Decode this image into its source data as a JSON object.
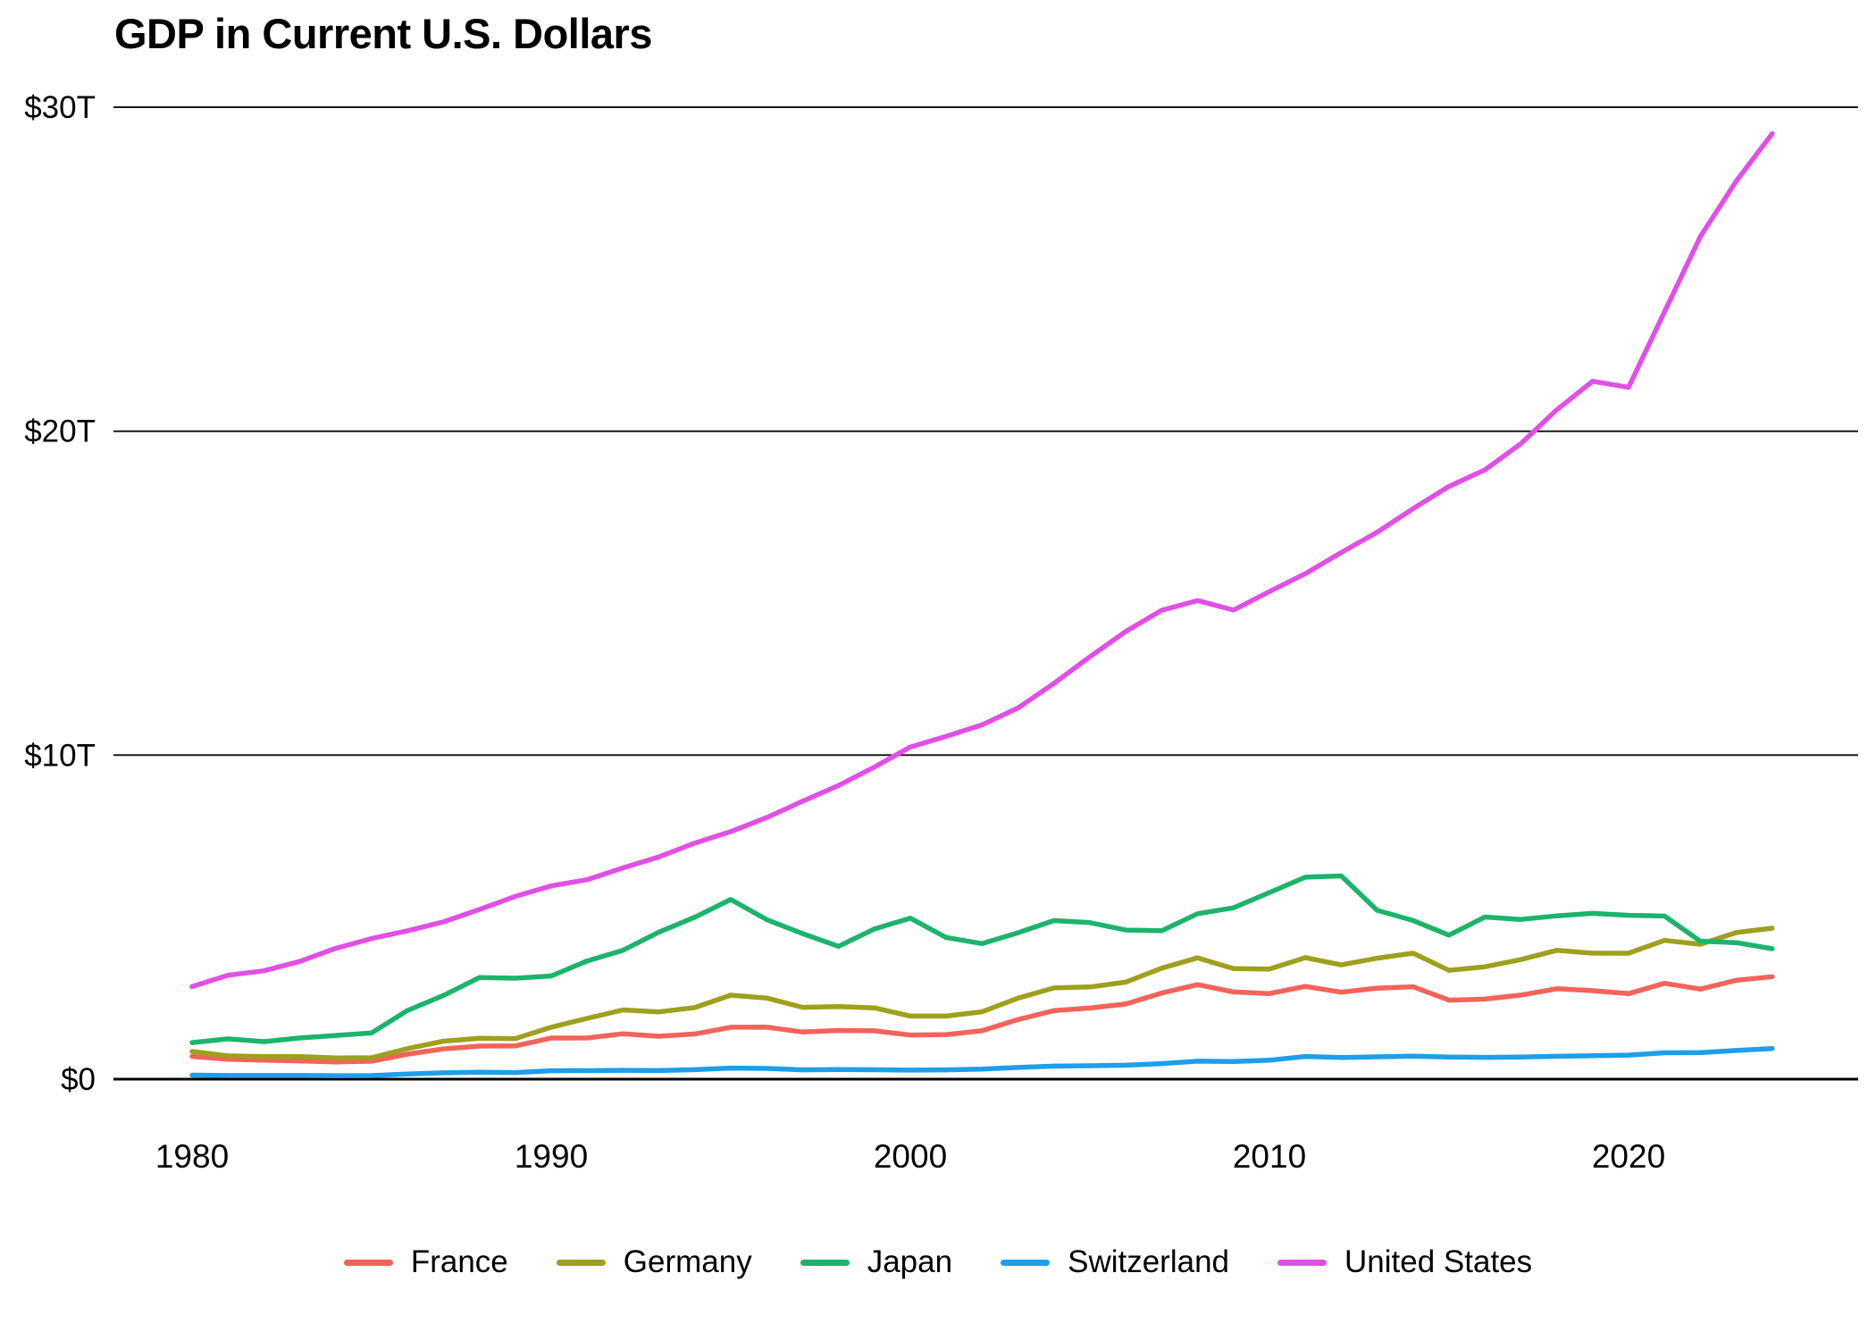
{
  "title": "GDP in Current U.S. Dollars",
  "chart_data": {
    "type": "line",
    "title": "GDP in Current U.S. Dollars",
    "unit": "trillions of current U.S. dollars",
    "grid": "horizontal",
    "legend_position": "bottom",
    "xlim": [
      1980,
      2024
    ],
    "ylim": [
      0,
      30
    ],
    "yticks": {
      "values": [
        0,
        10,
        20,
        30
      ],
      "labels": [
        "$0",
        "$10T",
        "$20T",
        "$30T"
      ]
    },
    "xticks": {
      "values": [
        1980,
        1990,
        2000,
        2010,
        2020
      ],
      "labels": [
        "1980",
        "1990",
        "2000",
        "2010",
        "2020"
      ]
    },
    "x": [
      1980,
      1981,
      1982,
      1983,
      1984,
      1985,
      1986,
      1987,
      1988,
      1989,
      1990,
      1991,
      1992,
      1993,
      1994,
      1995,
      1996,
      1997,
      1998,
      1999,
      2000,
      2001,
      2002,
      2003,
      2004,
      2005,
      2006,
      2007,
      2008,
      2009,
      2010,
      2011,
      2012,
      2013,
      2014,
      2015,
      2016,
      2017,
      2018,
      2019,
      2020,
      2021,
      2022,
      2023,
      2024
    ],
    "series": [
      {
        "name": "France",
        "color": "#F4635A",
        "values": [
          0.701,
          0.616,
          0.585,
          0.563,
          0.532,
          0.553,
          0.771,
          0.934,
          1.019,
          1.025,
          1.269,
          1.27,
          1.401,
          1.323,
          1.394,
          1.601,
          1.605,
          1.453,
          1.503,
          1.493,
          1.362,
          1.377,
          1.494,
          1.84,
          2.115,
          2.196,
          2.32,
          2.657,
          2.918,
          2.69,
          2.642,
          2.861,
          2.683,
          2.811,
          2.852,
          2.438,
          2.471,
          2.595,
          2.791,
          2.729,
          2.639,
          2.959,
          2.78,
          3.052,
          3.162
        ]
      },
      {
        "name": "Germany",
        "color": "#9EA01E",
        "values": [
          0.854,
          0.72,
          0.696,
          0.694,
          0.654,
          0.663,
          0.944,
          1.171,
          1.261,
          1.252,
          1.602,
          1.875,
          2.137,
          2.077,
          2.209,
          2.591,
          2.503,
          2.217,
          2.243,
          2.2,
          1.948,
          1.946,
          2.079,
          2.501,
          2.814,
          2.846,
          2.994,
          3.425,
          3.745,
          3.411,
          3.399,
          3.749,
          3.527,
          3.733,
          3.889,
          3.358,
          3.469,
          3.69,
          3.975,
          3.889,
          3.887,
          4.281,
          4.163,
          4.526,
          4.66
        ]
      },
      {
        "name": "Japan",
        "color": "#1CB46C",
        "values": [
          1.129,
          1.243,
          1.158,
          1.27,
          1.348,
          1.427,
          2.121,
          2.584,
          3.134,
          3.117,
          3.186,
          3.648,
          3.98,
          4.539,
          4.998,
          5.546,
          4.924,
          4.493,
          4.099,
          4.636,
          4.968,
          4.374,
          4.182,
          4.519,
          4.893,
          4.831,
          4.601,
          4.579,
          5.106,
          5.289,
          5.759,
          6.233,
          6.272,
          5.212,
          4.897,
          4.445,
          5.004,
          4.931,
          5.041,
          5.118,
          5.056,
          5.034,
          4.256,
          4.213,
          4.026
        ]
      },
      {
        "name": "Switzerland",
        "color": "#1E9FEA",
        "values": [
          0.124,
          0.113,
          0.114,
          0.113,
          0.108,
          0.111,
          0.157,
          0.196,
          0.211,
          0.203,
          0.258,
          0.262,
          0.272,
          0.264,
          0.293,
          0.342,
          0.33,
          0.287,
          0.295,
          0.289,
          0.278,
          0.286,
          0.309,
          0.362,
          0.403,
          0.413,
          0.431,
          0.48,
          0.555,
          0.543,
          0.584,
          0.7,
          0.668,
          0.689,
          0.711,
          0.68,
          0.672,
          0.68,
          0.706,
          0.722,
          0.742,
          0.813,
          0.818,
          0.885,
          0.942
        ]
      },
      {
        "name": "United States",
        "color": "#E14FE6",
        "values": [
          2.857,
          3.207,
          3.344,
          3.634,
          4.038,
          4.339,
          4.58,
          4.855,
          5.236,
          5.642,
          5.963,
          6.158,
          6.52,
          6.859,
          7.287,
          7.64,
          8.073,
          8.578,
          9.063,
          9.631,
          10.251,
          10.582,
          10.936,
          11.458,
          12.214,
          13.037,
          13.816,
          14.474,
          14.77,
          14.478,
          15.049,
          15.6,
          16.254,
          16.88,
          17.608,
          18.295,
          18.804,
          19.612,
          20.657,
          21.54,
          21.354,
          23.681,
          26.007,
          27.721,
          29.185
        ]
      }
    ]
  }
}
